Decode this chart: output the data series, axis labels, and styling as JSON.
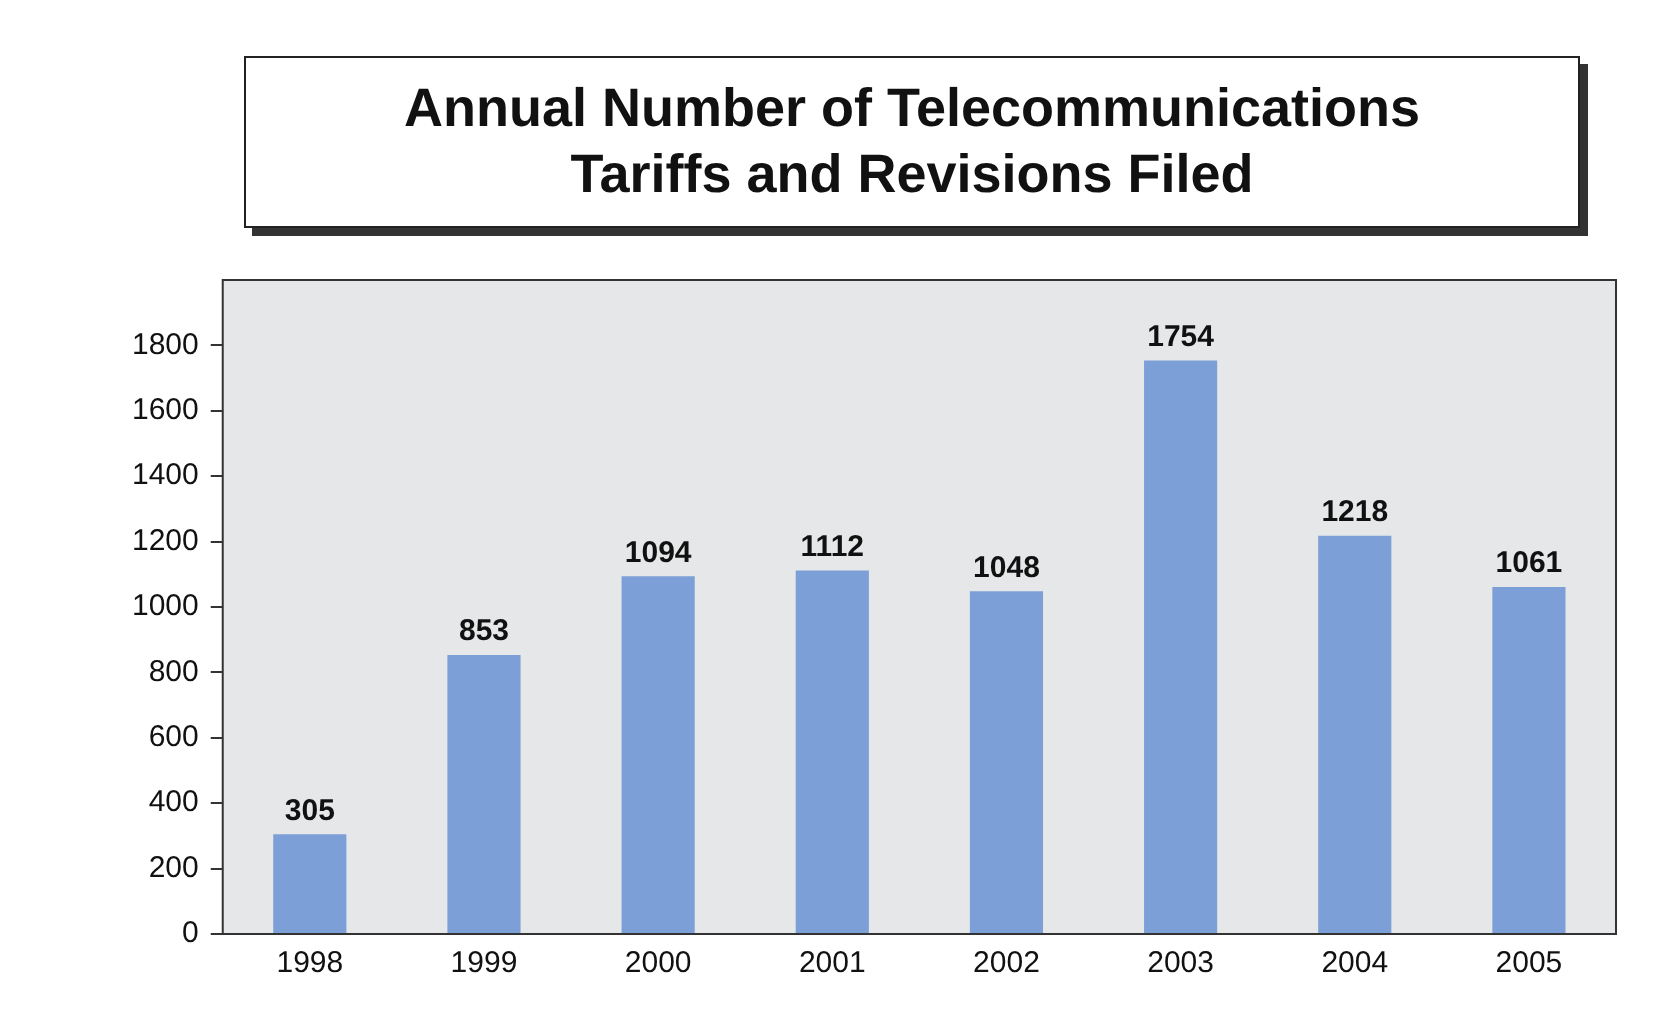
{
  "chart_data": {
    "type": "bar",
    "title": "Annual Number of Telecommunications Tariffs and Revisions Filed",
    "categories": [
      "1998",
      "1999",
      "2000",
      "2001",
      "2002",
      "2003",
      "2004",
      "2005"
    ],
    "values": [
      305,
      853,
      1094,
      1112,
      1048,
      1754,
      1218,
      1061
    ],
    "color": "#7b9fd6",
    "ylim": [
      0,
      2000
    ],
    "yticks": [
      0,
      200,
      400,
      600,
      800,
      1000,
      1200,
      1400,
      1600,
      1800
    ],
    "grid": false,
    "legend": false,
    "data_labels": true
  }
}
